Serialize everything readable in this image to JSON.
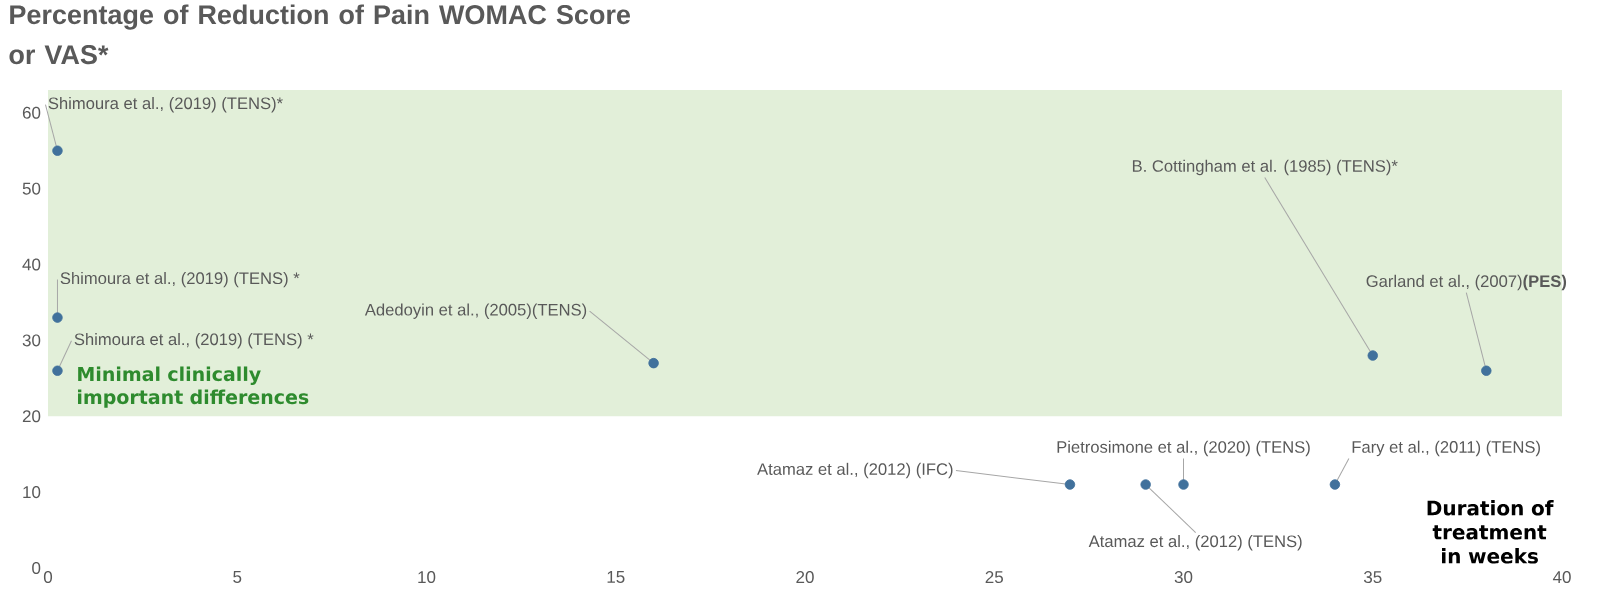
{
  "chart_data": {
    "type": "scatter",
    "title": "Percentage of Reduction of Pain WOMAC Score or VAS*",
    "xlabel": "Duration of treatment in weeks",
    "x": [
      0.25,
      0.25,
      0.25,
      16,
      35,
      38,
      27,
      29,
      30,
      34
    ],
    "values": [
      55,
      33,
      26,
      27,
      28,
      26,
      11,
      11,
      11,
      11
    ],
    "color": "#41719c",
    "marker": "circle",
    "xlim": [
      0,
      40
    ],
    "xticks": [
      0,
      5,
      10,
      15,
      20,
      25,
      30,
      35,
      40
    ],
    "ylim": [
      0,
      63
    ],
    "yticks": [
      0,
      10,
      20,
      30,
      40,
      50,
      60
    ],
    "bands": [
      {
        "axis": "y",
        "from": 20,
        "to": 63,
        "label": "Minimal clinically important differences",
        "color": "#e2efd9"
      }
    ],
    "annotations": [
      {
        "text": "Shimoura et al., (2019) (TENS)*",
        "x": 0.25,
        "y": 55
      },
      {
        "text": "Shimoura et al., (2019) (TENS) *",
        "x": 0.25,
        "y": 33
      },
      {
        "text": "Shimoura et al., (2019) (TENS) *",
        "x": 0.25,
        "y": 26
      },
      {
        "text": "Adedoyin et al., (2005)(TENS)",
        "x": 16,
        "y": 27
      },
      {
        "text": "B. Cottingham et al. (1985) (TENS)*",
        "x": 35,
        "y": 28
      },
      {
        "text": "Garland et al., (2007)**(PES)**",
        "x": 38,
        "y": 26
      },
      {
        "text": "Atamaz et al., (2012) (IFC)",
        "x": 27,
        "y": 11
      },
      {
        "text": "Atamaz et al., (2012) (TENS)",
        "x": 29,
        "y": 11
      },
      {
        "text": "Pietrosimone et al., (2020) (TENS)",
        "x": 30,
        "y": 11
      },
      {
        "text": "Fary et al., (2011) (TENS)",
        "x": 34,
        "y": 11
      }
    ]
  }
}
